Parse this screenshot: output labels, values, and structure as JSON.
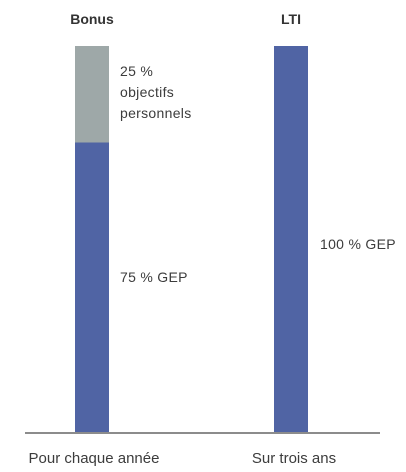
{
  "chart_data": {
    "type": "bar",
    "stacked": true,
    "categories": [
      "Bonus",
      "LTI"
    ],
    "bottom_labels": [
      "Pour chaque année",
      "Sur trois ans"
    ],
    "units": "%",
    "ylim": [
      0,
      100
    ],
    "grid": false,
    "legend": "none",
    "bars": [
      {
        "category": "Bonus",
        "segments": [
          {
            "value": 75,
            "label": "75 % GEP",
            "color": "#5064a4"
          },
          {
            "value": 25,
            "label_lines": [
              "25 %",
              "objectifs",
              "personnels"
            ],
            "color": "#9ea8a8"
          }
        ]
      },
      {
        "category": "LTI",
        "segments": [
          {
            "value": 100,
            "label": "100 % GEP",
            "color": "#5064a4"
          }
        ]
      }
    ]
  }
}
